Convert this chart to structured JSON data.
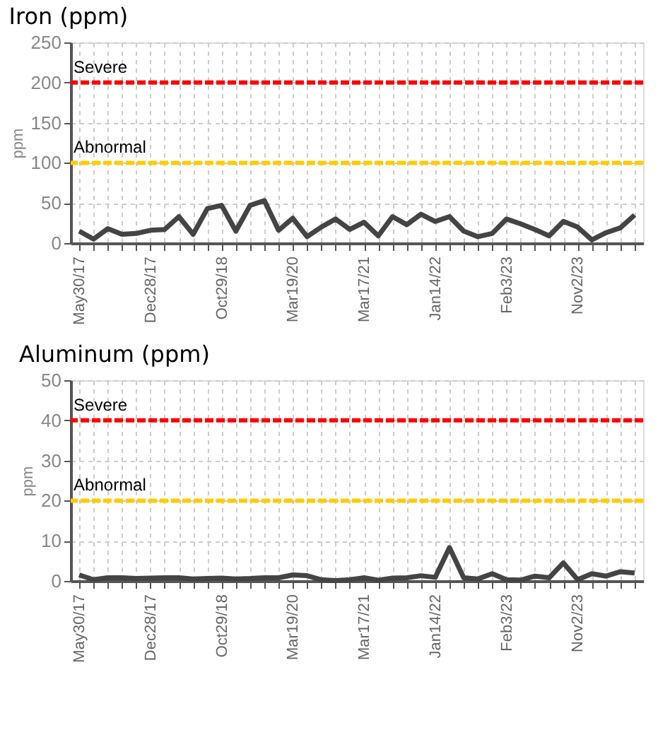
{
  "chart_data": [
    {
      "type": "line",
      "title": "Iron (ppm)",
      "ylabel": "ppm",
      "categories": [
        "May30/17",
        null,
        null,
        null,
        null,
        "Dec28/17",
        null,
        null,
        null,
        null,
        "Oct29/18",
        null,
        null,
        null,
        null,
        "Mar19/20",
        null,
        null,
        null,
        null,
        "Mar17/21",
        null,
        null,
        null,
        null,
        "Jan14/22",
        null,
        null,
        null,
        null,
        "Feb3/23",
        null,
        null,
        null,
        null,
        "Nov2/23",
        null,
        null,
        null,
        null
      ],
      "series": [
        {
          "color": "#444444",
          "values": [
            15,
            5,
            18,
            11,
            12,
            16,
            17,
            33,
            11,
            43,
            47,
            15,
            47,
            53,
            16,
            31,
            8,
            20,
            30,
            17,
            26,
            9,
            33,
            23,
            36,
            27,
            33,
            15,
            8,
            12,
            30,
            24,
            17,
            9,
            27,
            20,
            4,
            13,
            19,
            35
          ]
        }
      ],
      "ylim": [
        0,
        250
      ],
      "yticks": [
        0,
        50,
        100,
        150,
        200,
        250
      ],
      "grid": true,
      "ref_lines": [
        {
          "axis": "y",
          "value": 200,
          "label": "Severe",
          "color": "#ff0000"
        },
        {
          "axis": "y",
          "value": 100,
          "label": "Abnormal",
          "color": "#ffcc00"
        }
      ]
    },
    {
      "type": "line",
      "title": "Aluminum (ppm)",
      "ylabel": "ppm",
      "categories": [
        "May30/17",
        null,
        null,
        null,
        null,
        "Dec28/17",
        null,
        null,
        null,
        null,
        "Oct29/18",
        null,
        null,
        null,
        null,
        "Mar19/20",
        null,
        null,
        null,
        null,
        "Mar17/21",
        null,
        null,
        null,
        null,
        "Jan14/22",
        null,
        null,
        null,
        null,
        "Feb3/23",
        null,
        null,
        null,
        null,
        "Nov2/23",
        null,
        null,
        null,
        null
      ],
      "series": [
        {
          "color": "#444444",
          "values": [
            1.5,
            0.3,
            0.8,
            0.8,
            0.6,
            0.7,
            0.8,
            0.8,
            0.5,
            0.6,
            0.7,
            0.5,
            0.6,
            0.8,
            0.8,
            1.5,
            1.3,
            0.3,
            0.1,
            0.3,
            0.8,
            0.2,
            0.7,
            0.8,
            1.3,
            0.9,
            8.3,
            0.8,
            0.5,
            1.8,
            0.3,
            0.2,
            1.2,
            0.8,
            4.5,
            0.3,
            1.8,
            1.2,
            2.3,
            2.0
          ]
        }
      ],
      "ylim": [
        0,
        50
      ],
      "yticks": [
        0,
        10,
        20,
        30,
        40,
        50
      ],
      "grid": true,
      "ref_lines": [
        {
          "axis": "y",
          "value": 40,
          "label": "Severe",
          "color": "#ff0000"
        },
        {
          "axis": "y",
          "value": 20,
          "label": "Abnormal",
          "color": "#ffcc00"
        }
      ]
    }
  ]
}
